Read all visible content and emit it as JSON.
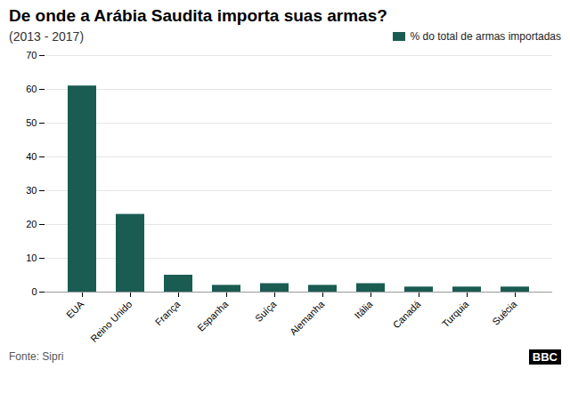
{
  "chart_data": {
    "type": "bar",
    "title": "De onde a Arábia Saudita importa suas armas?",
    "subtitle": "(2013 - 2017)",
    "source": "Fonte: Sipri",
    "annotations": [
      "BBC"
    ],
    "categories": [
      "EUA",
      "Reino Unido",
      "França",
      "Espanha",
      "Suíça",
      "Alemanha",
      "Itália",
      "Canadá",
      "Turquia",
      "Suécia"
    ],
    "series": [
      {
        "name": "% do total de armas importadas",
        "color": "#1a5c52",
        "values": [
          61,
          23,
          5,
          2,
          2.5,
          2,
          2.5,
          1.5,
          1.5,
          1.5
        ]
      }
    ],
    "ylim": [
      0,
      70
    ],
    "yticks": [
      0,
      10,
      20,
      30,
      40,
      50,
      60,
      70
    ],
    "grid": true,
    "legend": "upper right"
  }
}
